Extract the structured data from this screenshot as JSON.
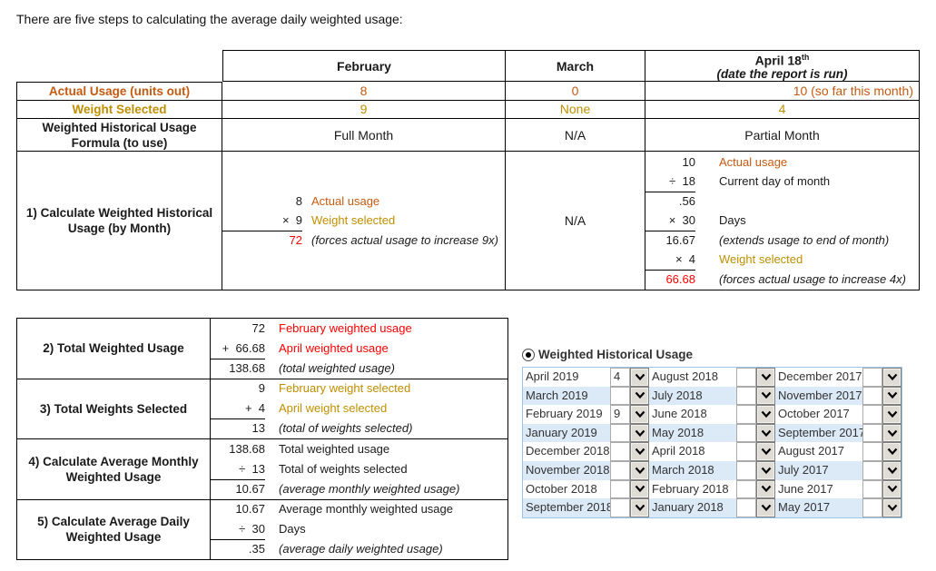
{
  "page": {
    "intro": "There are five steps to calculating the average daily weighted usage:"
  },
  "colors": {
    "orange": "#C55A11",
    "gold": "#BF8F00",
    "red": "#FF0000",
    "panel_row_blue": "#DCE9F7",
    "panel_border_blue": "#9DC3E6"
  },
  "top_table": {
    "col_headers": {
      "feb": "February",
      "mar": "March",
      "apr_main": "April 18",
      "apr_sup": "th",
      "apr_sub": "(date the report is run)"
    },
    "rows": {
      "actual_usage": {
        "label": "Actual Usage (units out)",
        "feb": "8",
        "mar": "0",
        "apr": "10 (so far this month)"
      },
      "weight_selected": {
        "label": "Weight Selected",
        "feb": "9",
        "mar": "None",
        "apr": "4"
      },
      "formula": {
        "label": "Weighted Historical Usage Formula (to use)",
        "feb": "Full Month",
        "mar": "N/A",
        "apr": "Partial Month"
      },
      "step1": {
        "label": "1) Calculate Weighted Historical Usage (by Month)",
        "mar": "N/A"
      }
    },
    "step1_feb_lines": [
      {
        "num": "8",
        "label": "Actual usage",
        "lbl_cls": "orange"
      },
      {
        "num": "×  9",
        "label": "Weight selected",
        "lbl_cls": "gold",
        "ul": true
      },
      {
        "num": "72",
        "label": "(forces actual usage to increase 9x)",
        "num_cls": "red",
        "lbl_cls": "italic"
      }
    ],
    "step1_apr_lines": [
      {
        "num": "10",
        "label": "Actual usage",
        "lbl_cls": "orange"
      },
      {
        "num": "÷  18",
        "label": "Current day of month",
        "ul": true
      },
      {
        "num": ".56",
        "label": ""
      },
      {
        "num": "×  30",
        "label": "Days",
        "ul": true
      },
      {
        "num": "16.67",
        "label": "(extends usage to end of month)",
        "lbl_cls": "italic"
      },
      {
        "num": "×  4",
        "label": "Weight selected",
        "lbl_cls": "gold",
        "ul": true
      },
      {
        "num": "66.68",
        "label": "(forces actual usage to increase 4x)",
        "num_cls": "red",
        "lbl_cls": "italic"
      }
    ]
  },
  "steps_table": {
    "steps": [
      {
        "label": "2) Total Weighted Usage",
        "lines": [
          {
            "num": "72",
            "label": "February weighted usage",
            "lbl_cls": "red"
          },
          {
            "num": "+  66.68",
            "label": "April weighted usage",
            "lbl_cls": "red",
            "ul": true
          },
          {
            "num": "138.68",
            "label": "(total weighted usage)",
            "lbl_cls": "italic"
          }
        ]
      },
      {
        "label": "3) Total Weights Selected",
        "lines": [
          {
            "num": "9",
            "label": "February weight selected",
            "lbl_cls": "gold"
          },
          {
            "num": "+  4",
            "label": "April weight selected",
            "lbl_cls": "gold",
            "ul": true
          },
          {
            "num": "13",
            "label": "(total of weights selected)",
            "lbl_cls": "italic"
          }
        ]
      },
      {
        "label": "4) Calculate Average Monthly Weighted Usage",
        "lines": [
          {
            "num": "138.68",
            "label": "Total weighted usage"
          },
          {
            "num": "÷  13",
            "label": "Total of weights selected",
            "ul": true
          },
          {
            "num": "10.67",
            "label": "(average monthly weighted usage)",
            "lbl_cls": "italic"
          }
        ]
      },
      {
        "label": "5) Calculate Average Daily Weighted Usage",
        "lines": [
          {
            "num": "10.67",
            "label": "Average monthly weighted usage"
          },
          {
            "num": "÷  30",
            "label": "Days",
            "ul": true
          },
          {
            "num": ".35",
            "label": "(average daily weighted usage)",
            "lbl_cls": "italic"
          }
        ]
      }
    ]
  },
  "panel": {
    "radio_label": "Weighted Historical Usage",
    "columns": [
      {
        "rows": [
          {
            "month": "April 2019",
            "value": "4"
          },
          {
            "month": "March 2019",
            "value": ""
          },
          {
            "month": "February 2019",
            "value": "9"
          },
          {
            "month": "January 2019",
            "value": ""
          },
          {
            "month": "December 2018",
            "value": ""
          },
          {
            "month": "November 2018",
            "value": ""
          },
          {
            "month": "October 2018",
            "value": ""
          },
          {
            "month": "September 2018",
            "value": ""
          }
        ]
      },
      {
        "rows": [
          {
            "month": "August 2018",
            "value": ""
          },
          {
            "month": "July 2018",
            "value": ""
          },
          {
            "month": "June 2018",
            "value": ""
          },
          {
            "month": "May 2018",
            "value": ""
          },
          {
            "month": "April 2018",
            "value": ""
          },
          {
            "month": "March 2018",
            "value": ""
          },
          {
            "month": "February 2018",
            "value": ""
          },
          {
            "month": "January 2018",
            "value": ""
          }
        ]
      },
      {
        "rows": [
          {
            "month": "December 2017",
            "value": ""
          },
          {
            "month": "November 2017",
            "value": ""
          },
          {
            "month": "October 2017",
            "value": ""
          },
          {
            "month": "September 2017",
            "value": ""
          },
          {
            "month": "August 2017",
            "value": ""
          },
          {
            "month": "July 2017",
            "value": ""
          },
          {
            "month": "June 2017",
            "value": ""
          },
          {
            "month": "May 2017",
            "value": ""
          }
        ]
      }
    ]
  }
}
